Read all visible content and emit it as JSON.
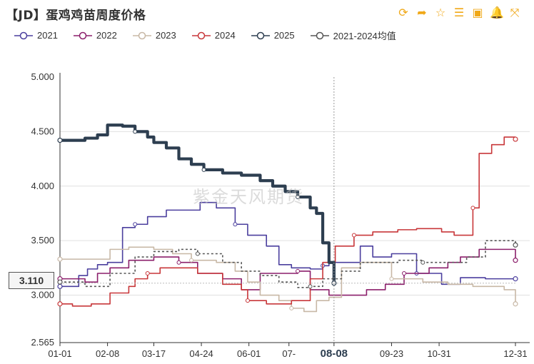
{
  "header": {
    "title": "【JD】蛋鸡鸡苗周度价格",
    "tools": [
      {
        "name": "refresh-icon",
        "glyph": "⟳"
      },
      {
        "name": "share-icon",
        "glyph": "➦"
      },
      {
        "name": "star-icon",
        "glyph": "☆"
      },
      {
        "name": "list-icon",
        "glyph": "☰"
      },
      {
        "name": "image-icon",
        "glyph": "▣"
      },
      {
        "name": "bell-icon",
        "glyph": "🔔"
      },
      {
        "name": "fullscreen-icon",
        "glyph": "⤧"
      }
    ]
  },
  "watermark": "紫金天风期货",
  "tooltip_value": "3.110",
  "highlight_label": "08-08",
  "chart_data": {
    "type": "line",
    "title": "【JD】蛋鸡鸡苗周度价格",
    "xlabel": "",
    "ylabel": "",
    "ylim": [
      2.565,
      5.0
    ],
    "y_ticks": [
      "5.000",
      "4.500",
      "4.000",
      "3.500",
      "3.000",
      "2.565"
    ],
    "x_ticks": [
      "01-01",
      "02-08",
      "03-17",
      "04-24",
      "06-01",
      "07-",
      "08-08",
      "09-23",
      "10-31",
      "12-31"
    ],
    "x_tick_days": [
      0,
      38,
      75,
      113,
      151,
      183,
      219,
      265,
      303,
      364
    ],
    "legend_position": "top",
    "grid": true,
    "series": [
      {
        "name": "2021",
        "color": "#4b3f9e",
        "width": 1.6,
        "dash": "",
        "points": [
          [
            0,
            3.08
          ],
          [
            15,
            3.18
          ],
          [
            22,
            3.24
          ],
          [
            30,
            3.28
          ],
          [
            38,
            3.3
          ],
          [
            50,
            3.62
          ],
          [
            60,
            3.65
          ],
          [
            70,
            3.72
          ],
          [
            85,
            3.78
          ],
          [
            100,
            3.78
          ],
          [
            112,
            3.85
          ],
          [
            125,
            3.8
          ],
          [
            140,
            3.65
          ],
          [
            150,
            3.55
          ],
          [
            165,
            3.45
          ],
          [
            175,
            3.28
          ],
          [
            185,
            3.25
          ],
          [
            200,
            3.24
          ],
          [
            210,
            3.27
          ],
          [
            215,
            3.3
          ],
          [
            230,
            3.3
          ],
          [
            240,
            3.45
          ],
          [
            250,
            3.35
          ],
          [
            265,
            3.38
          ],
          [
            285,
            3.2
          ],
          [
            305,
            3.1
          ],
          [
            320,
            3.16
          ],
          [
            340,
            3.15
          ],
          [
            364,
            3.15
          ]
        ]
      },
      {
        "name": "2022",
        "color": "#8b1f6b",
        "width": 1.6,
        "dash": "",
        "points": [
          [
            0,
            3.15
          ],
          [
            20,
            3.12
          ],
          [
            30,
            3.2
          ],
          [
            40,
            3.25
          ],
          [
            55,
            3.32
          ],
          [
            75,
            3.35
          ],
          [
            95,
            3.3
          ],
          [
            110,
            3.2
          ],
          [
            130,
            3.15
          ],
          [
            145,
            3.05
          ],
          [
            160,
            3.2
          ],
          [
            180,
            3.2
          ],
          [
            190,
            3.22
          ],
          [
            200,
            3.05
          ],
          [
            215,
            3.0
          ],
          [
            230,
            3.0
          ],
          [
            245,
            3.05
          ],
          [
            260,
            3.1
          ],
          [
            275,
            3.2
          ],
          [
            295,
            3.25
          ],
          [
            310,
            3.3
          ],
          [
            320,
            3.35
          ],
          [
            335,
            3.42
          ],
          [
            350,
            3.42
          ],
          [
            364,
            3.32
          ]
        ]
      },
      {
        "name": "2023",
        "color": "#c8b8a6",
        "width": 1.6,
        "dash": "",
        "points": [
          [
            0,
            3.33
          ],
          [
            30,
            3.33
          ],
          [
            40,
            3.42
          ],
          [
            55,
            3.44
          ],
          [
            75,
            3.42
          ],
          [
            90,
            3.38
          ],
          [
            105,
            3.32
          ],
          [
            125,
            3.3
          ],
          [
            140,
            3.22
          ],
          [
            150,
            3.12
          ],
          [
            160,
            3.0
          ],
          [
            175,
            2.95
          ],
          [
            185,
            2.88
          ],
          [
            195,
            2.85
          ],
          [
            205,
            2.95
          ],
          [
            215,
            2.98
          ],
          [
            225,
            3.25
          ],
          [
            240,
            3.3
          ],
          [
            265,
            3.15
          ],
          [
            290,
            3.12
          ],
          [
            310,
            3.1
          ],
          [
            330,
            3.08
          ],
          [
            355,
            3.05
          ],
          [
            364,
            2.92
          ]
        ]
      },
      {
        "name": "2024",
        "color": "#c8373a",
        "width": 1.6,
        "dash": "",
        "points": [
          [
            0,
            2.92
          ],
          [
            10,
            2.9
          ],
          [
            25,
            2.92
          ],
          [
            40,
            3.02
          ],
          [
            55,
            3.08
          ],
          [
            60,
            3.15
          ],
          [
            70,
            3.2
          ],
          [
            80,
            3.25
          ],
          [
            95,
            3.25
          ],
          [
            110,
            3.2
          ],
          [
            130,
            3.1
          ],
          [
            145,
            3.05
          ],
          [
            150,
            2.95
          ],
          [
            165,
            2.92
          ],
          [
            185,
            2.95
          ],
          [
            200,
            3.15
          ],
          [
            210,
            3.3
          ],
          [
            220,
            3.45
          ],
          [
            235,
            3.55
          ],
          [
            250,
            3.58
          ],
          [
            270,
            3.6
          ],
          [
            285,
            3.61
          ],
          [
            305,
            3.58
          ],
          [
            315,
            3.55
          ],
          [
            330,
            3.8
          ],
          [
            335,
            4.3
          ],
          [
            345,
            4.38
          ],
          [
            355,
            4.45
          ],
          [
            364,
            4.43
          ]
        ]
      },
      {
        "name": "2025",
        "color": "#2d3e50",
        "width": 4.2,
        "dash": "",
        "points": [
          [
            0,
            4.42
          ],
          [
            10,
            4.42
          ],
          [
            20,
            4.44
          ],
          [
            30,
            4.47
          ],
          [
            38,
            4.56
          ],
          [
            50,
            4.55
          ],
          [
            60,
            4.5
          ],
          [
            70,
            4.45
          ],
          [
            75,
            4.4
          ],
          [
            85,
            4.35
          ],
          [
            95,
            4.25
          ],
          [
            105,
            4.2
          ],
          [
            115,
            4.15
          ],
          [
            130,
            4.12
          ],
          [
            145,
            4.1
          ],
          [
            160,
            4.05
          ],
          [
            170,
            4.0
          ],
          [
            180,
            3.95
          ],
          [
            190,
            3.9
          ],
          [
            200,
            3.8
          ],
          [
            205,
            3.75
          ],
          [
            210,
            3.48
          ],
          [
            215,
            3.3
          ],
          [
            219,
            3.11
          ]
        ]
      },
      {
        "name": "2021-2024均值",
        "color": "#555555",
        "width": 1.6,
        "dash": "3,3",
        "points": [
          [
            0,
            3.12
          ],
          [
            20,
            3.08
          ],
          [
            40,
            3.2
          ],
          [
            60,
            3.35
          ],
          [
            75,
            3.4
          ],
          [
            95,
            3.42
          ],
          [
            110,
            3.38
          ],
          [
            130,
            3.3
          ],
          [
            145,
            3.22
          ],
          [
            160,
            3.18
          ],
          [
            175,
            3.12
          ],
          [
            190,
            3.07
          ],
          [
            200,
            3.08
          ],
          [
            210,
            3.15
          ],
          [
            225,
            3.22
          ],
          [
            240,
            3.3
          ],
          [
            255,
            3.3
          ],
          [
            270,
            3.32
          ],
          [
            290,
            3.3
          ],
          [
            310,
            3.3
          ],
          [
            325,
            3.35
          ],
          [
            340,
            3.5
          ],
          [
            350,
            3.5
          ],
          [
            364,
            3.46
          ]
        ]
      }
    ]
  }
}
